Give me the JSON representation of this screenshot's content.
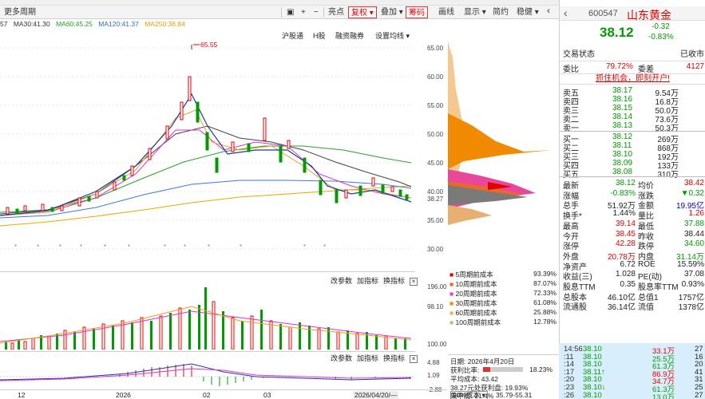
{
  "toolbar": {
    "left_item": "更多周期",
    "right_items": [
      "亮点",
      "复权",
      "叠加",
      "筹码",
      "画线",
      "显示",
      "简约",
      "稳健"
    ],
    "sub_items": [
      "沪股通",
      "H股",
      "融资融券",
      "设置均线"
    ]
  },
  "ma_legend": [
    {
      "label": "MA30:41.30",
      "color": "#333333"
    },
    {
      "label": "MA60:45.25",
      "color": "#22a022"
    },
    {
      "label": "MA120:41.37",
      "color": "#2a6ad0"
    },
    {
      "label": "MA250:36.84",
      "color": "#e0a000"
    }
  ],
  "chart": {
    "high_label": "65.55",
    "price_axis": [
      "65.00",
      "60.00",
      "55.00",
      "50.00",
      "45.00",
      "40.00",
      "38.27",
      "35.00",
      "30.00"
    ],
    "volume_tools": [
      "改参数",
      "加指标",
      "换指标"
    ],
    "volume_axis": [
      "196.00",
      "98.10",
      "100.00"
    ],
    "macd_tools": [
      "改参数",
      "加指标",
      "换指标"
    ],
    "macd_axis": [
      "4.88",
      "1.09",
      "-2.88"
    ],
    "x_labels": [
      "12",
      "2026",
      "02",
      "03"
    ],
    "date_box": "2026/04/20/—"
  },
  "chips": {
    "legend": [
      {
        "label": "5周期前成本",
        "value": "93.39%",
        "color": "#e00000"
      },
      {
        "label": "10周期前成本",
        "value": "87.07%",
        "color": "#e86a2a"
      },
      {
        "label": "20周期前成本",
        "value": "72.33%",
        "color": "#e8479a"
      },
      {
        "label": "30周期前成本",
        "value": "61.08%",
        "color": "#f08a00"
      },
      {
        "label": "60周期前成本",
        "value": "25.88%",
        "color": "#f2b05a"
      },
      {
        "label": "100周期前成本",
        "value": "12.78%",
        "color": "#d8b080"
      }
    ],
    "date_label": "日期: 2026年4月20日",
    "profit_label": "获利比率:",
    "profit_value": "18.23%",
    "profit_fill": 0.1823,
    "avg_cost": "平均成本: 43.42",
    "profit_at": "38.27元处获利盘: 19.93%",
    "cost_select": "90%成本",
    "cost_range": "35.79-55.31",
    "concentration": "集中度: 21.4%"
  },
  "quote": {
    "code": "600547",
    "name": "山东黄金",
    "price": "38.12",
    "change": "-0.32",
    "change_pct": "-0.83%",
    "trade_status_label": "交易状态",
    "trade_status": "已收市",
    "webi_label": "委比",
    "webi": "79.72%",
    "weicha_label": "委差",
    "weicha": "4127",
    "promo": "抓住机会，即刻开户!",
    "asks": [
      {
        "label": "卖五",
        "price": "38.17",
        "vol": "9.54万"
      },
      {
        "label": "卖四",
        "price": "38.16",
        "vol": "16.8万"
      },
      {
        "label": "卖三",
        "price": "38.15",
        "vol": "50.0万"
      },
      {
        "label": "卖二",
        "price": "38.14",
        "vol": "73.6万"
      },
      {
        "label": "卖一",
        "price": "38.13",
        "vol": "50.3万"
      }
    ],
    "bids": [
      {
        "label": "买一",
        "price": "38.12",
        "vol": "269万"
      },
      {
        "label": "买二",
        "price": "38.11",
        "vol": "868万"
      },
      {
        "label": "买三",
        "price": "38.10",
        "vol": "192万"
      },
      {
        "label": "买四",
        "price": "38.09",
        "vol": "133万"
      },
      {
        "label": "买五",
        "price": "38.08",
        "vol": "310万"
      }
    ],
    "stats": [
      {
        "l1": "最新",
        "v1": "38.12",
        "c1": "green",
        "l2": "均价",
        "v2": "38.42",
        "c2": "red"
      },
      {
        "l1": "涨幅",
        "v1": "-0.83%",
        "c1": "green",
        "l2": "涨跌",
        "v2": "▼0.32",
        "c2": "green"
      },
      {
        "l1": "总手",
        "v1": "51.92万",
        "c1": "dark",
        "l2": "金额",
        "v2": "19.95亿",
        "c2": "blue"
      },
      {
        "l1": "换手*",
        "v1": "1.44%",
        "c1": "dark",
        "l2": "量比",
        "v2": "1.26",
        "c2": "red"
      },
      {
        "l1": "最高",
        "v1": "39.14",
        "c1": "red",
        "l2": "最低",
        "v2": "37.88",
        "c2": "green"
      },
      {
        "l1": "今开",
        "v1": "38.45",
        "c1": "red",
        "l2": "昨收",
        "v2": "38.44",
        "c2": "dark"
      },
      {
        "l1": "涨停",
        "v1": "42.28",
        "c1": "red",
        "l2": "跌停",
        "v2": "34.60",
        "c2": "green"
      },
      {
        "l1": "外盘",
        "v1": "20.78万",
        "c1": "red",
        "l2": "内盘",
        "v2": "31.14万",
        "c2": "green"
      },
      {
        "l1": "净资产",
        "v1": "6.72",
        "c1": "dark",
        "l2": "ROE",
        "v2": "15.59%",
        "c2": "dark"
      },
      {
        "l1": "收益(三)",
        "v1": "1.028",
        "c1": "dark",
        "l2": "PE(动)",
        "v2": "37.08",
        "c2": "dark"
      },
      {
        "l1": "股息TTM",
        "v1": "0.35",
        "c1": "dark",
        "l2": "股息率TTM",
        "v2": "0.93%",
        "c2": "dark"
      },
      {
        "l1": "总股本",
        "v1": "46.10亿",
        "c1": "dark",
        "l2": "总值1",
        "v2": "1757亿",
        "c2": "dark"
      },
      {
        "l1": "流通股",
        "v1": "36.14亿",
        "c1": "dark",
        "l2": "流值",
        "v2": "1378亿",
        "c2": "dark"
      }
    ],
    "ticks": [
      {
        "time": "14:56",
        "price": "38.10",
        "vol": "33.1万",
        "n": "27",
        "vc": "red"
      },
      {
        "time": ":11",
        "price": "38.10",
        "vol": "25.5万",
        "n": "16",
        "vc": "green"
      },
      {
        "time": ":14",
        "price": "38.10",
        "vol": "61.3万",
        "n": "20",
        "vc": "green"
      },
      {
        "time": ":17",
        "price": "38.11↑",
        "vol": "86.9万",
        "n": "41",
        "vc": "red"
      },
      {
        "time": ":20",
        "price": "38.10",
        "vol": "34.7万",
        "n": "31",
        "vc": "red"
      },
      {
        "time": ":23",
        "price": "38.10↓",
        "vol": "61.3万",
        "n": "25",
        "vc": "green"
      },
      {
        "time": ":26",
        "price": "38.10",
        "vol": "13.0万",
        "n": "27",
        "vc": "green"
      }
    ]
  }
}
